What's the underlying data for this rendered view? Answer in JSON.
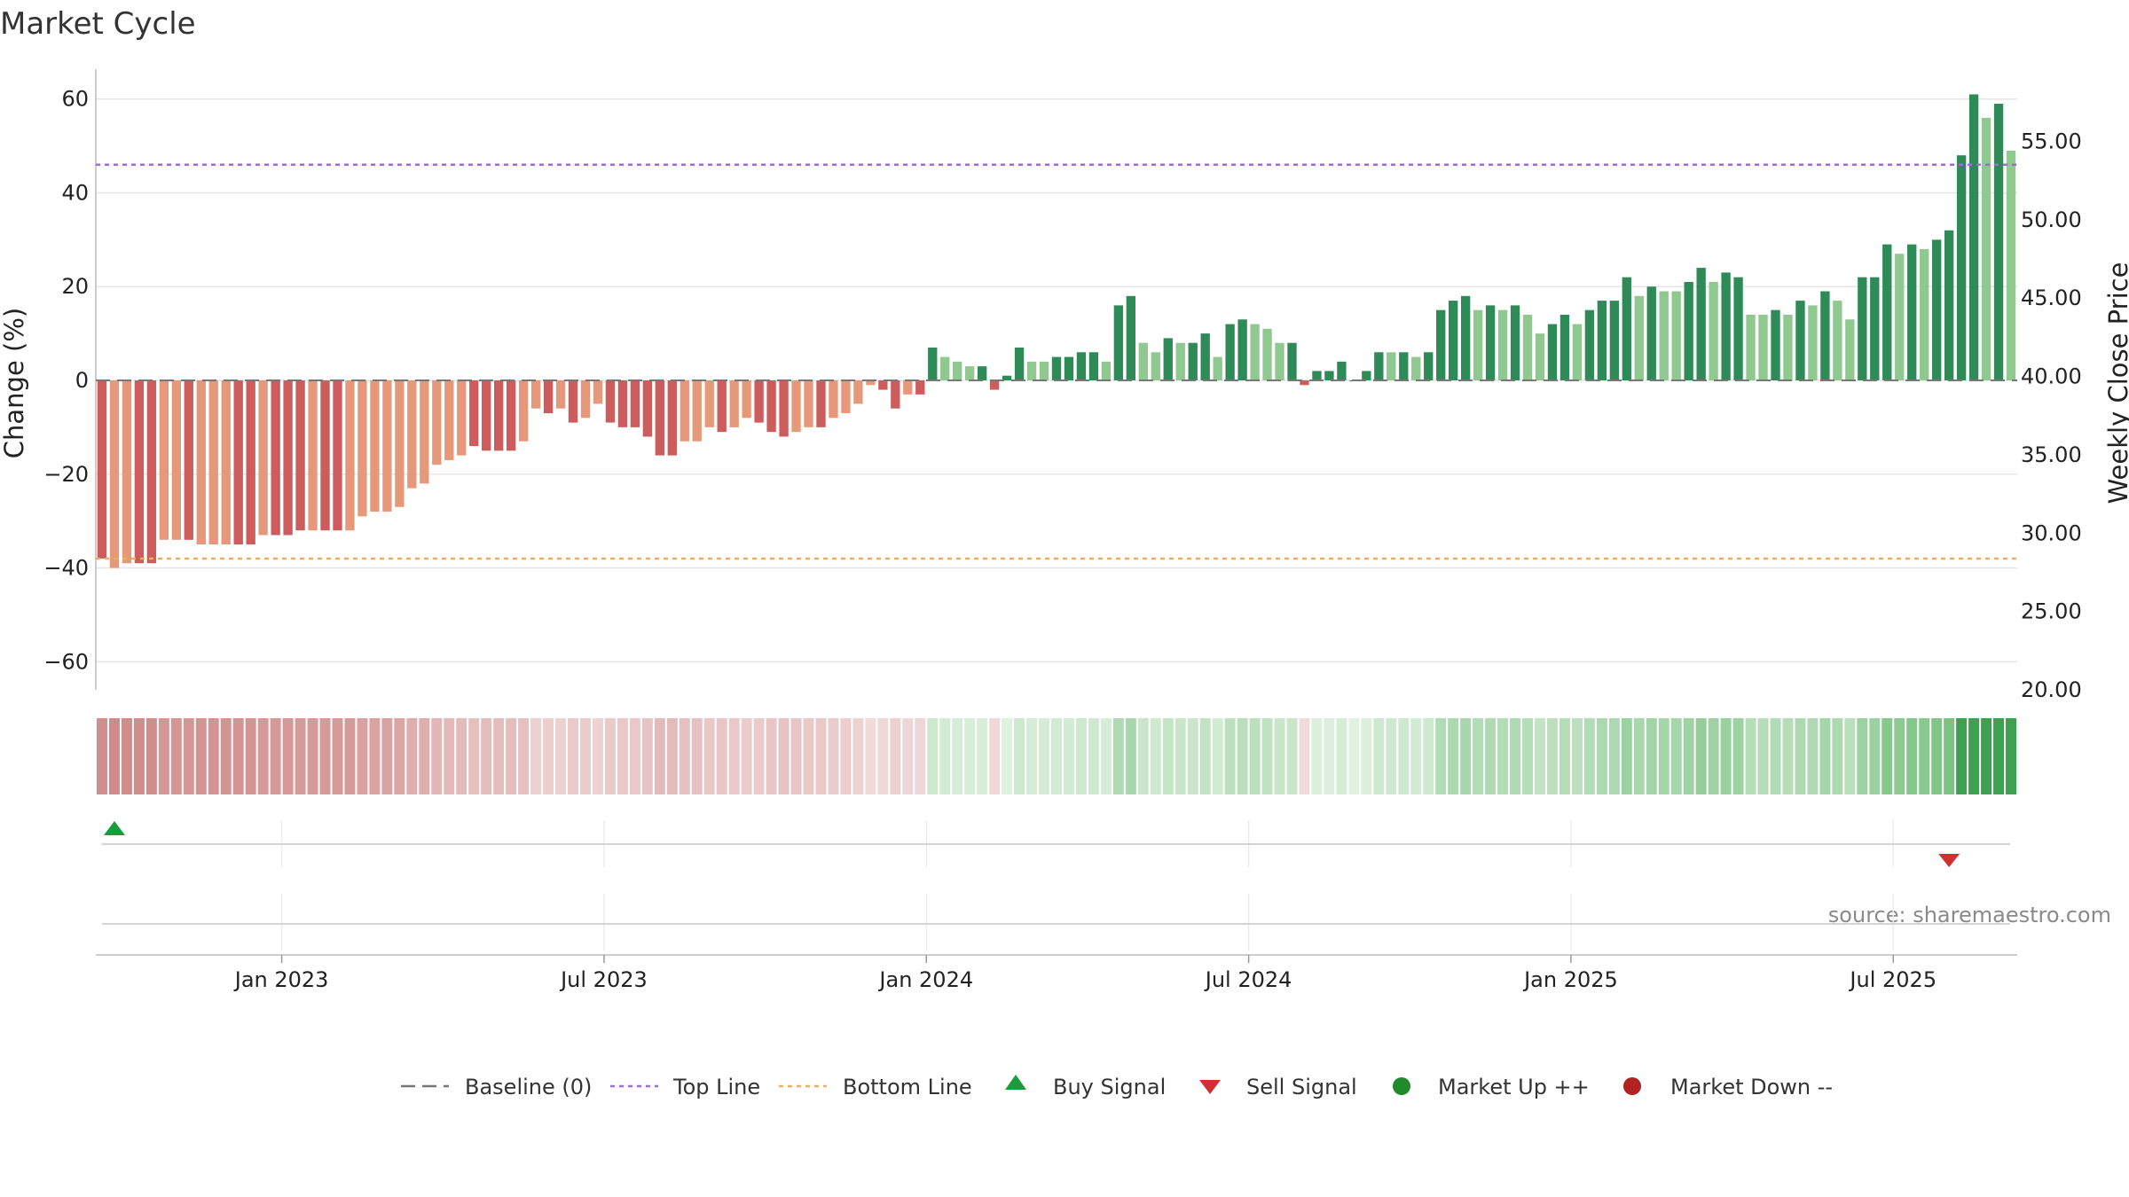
{
  "chart_data": {
    "type": "bar",
    "title": "Market Cycle",
    "ylabel_left": "Change (%)",
    "ylabel_right": "Weekly Close Price",
    "source": "source: sharemaestro.com",
    "y_left": {
      "ticks": [
        60,
        40,
        20,
        0,
        -20,
        -40,
        -60
      ],
      "range": [
        -66,
        66
      ]
    },
    "y_right": {
      "ticks": [
        "55.00",
        "50.00",
        "45.00",
        "40.00",
        "35.00",
        "30.00",
        "25.00",
        "20.00"
      ],
      "range": [
        20,
        59.5
      ]
    },
    "x_ticks": [
      {
        "label": "Jan 2023",
        "index": 15
      },
      {
        "label": "Jul 2023",
        "index": 41
      },
      {
        "label": "Jan 2024",
        "index": 67
      },
      {
        "label": "Jul 2024",
        "index": 93
      },
      {
        "label": "Jan 2025",
        "index": 119
      },
      {
        "label": "Jul 2025",
        "index": 145
      }
    ],
    "start_week": "2022-10-07",
    "period": "weekly",
    "top_line": 46,
    "bottom_line": -38,
    "baseline": 0,
    "colors": {
      "down_strong": "#cd5c5c",
      "down_light": "#e5997a",
      "up_strong": "#2e8b57",
      "up_light": "#8fc98f",
      "top_line": "#9b6fd1",
      "bottom_line": "#e3b06a",
      "baseline": "#777777",
      "buy": "#1a9c3c",
      "sell": "#d03030",
      "market_up": "#218a2b",
      "market_down": "#b22222"
    },
    "values": [
      -38,
      -40,
      -39,
      -39,
      -39,
      -34,
      -34,
      -34,
      -35,
      -35,
      -35,
      -35,
      -35,
      -33,
      -33,
      -33,
      -32,
      -32,
      -32,
      -32,
      -32,
      -29,
      -28,
      -28,
      -27,
      -23,
      -22,
      -18,
      -17,
      -16,
      -14,
      -15,
      -15,
      -15,
      -13,
      -6,
      -7,
      -6,
      -9,
      -8,
      -5,
      -9,
      -10,
      -10,
      -12,
      -16,
      -16,
      -13,
      -13,
      -10,
      -11,
      -10,
      -8,
      -9,
      -11,
      -12,
      -11,
      -10,
      -10,
      -8,
      -7,
      -5,
      -1,
      -2,
      -6,
      -3,
      -3,
      7,
      5,
      4,
      3,
      3,
      -2,
      1,
      7,
      4,
      4,
      5,
      5,
      6,
      6,
      4,
      16,
      18,
      8,
      6,
      9,
      8,
      8,
      10,
      5,
      12,
      13,
      12,
      11,
      8,
      8,
      -1,
      2,
      2,
      4,
      0,
      2,
      6,
      6,
      6,
      5,
      6,
      15,
      17,
      18,
      15,
      16,
      15,
      16,
      14,
      10,
      12,
      14,
      12,
      15,
      17,
      17,
      22,
      18,
      20,
      19,
      19,
      21,
      24,
      21,
      23,
      22,
      14,
      14,
      15,
      14,
      17,
      16,
      19,
      17,
      13,
      22,
      22,
      29,
      27,
      29,
      28,
      30,
      32,
      48,
      61,
      56,
      59,
      49
    ],
    "light": [
      0,
      1,
      1,
      0,
      0,
      1,
      1,
      0,
      1,
      1,
      1,
      0,
      0,
      1,
      0,
      0,
      0,
      1,
      0,
      0,
      1,
      1,
      1,
      1,
      1,
      1,
      1,
      1,
      1,
      1,
      0,
      0,
      0,
      0,
      1,
      1,
      0,
      1,
      0,
      1,
      1,
      0,
      0,
      0,
      0,
      0,
      0,
      1,
      1,
      1,
      0,
      1,
      1,
      0,
      0,
      0,
      1,
      1,
      0,
      1,
      1,
      1,
      1,
      0,
      0,
      1,
      0,
      0,
      1,
      1,
      1,
      0,
      0,
      0,
      0,
      1,
      1,
      0,
      0,
      0,
      0,
      1,
      0,
      0,
      1,
      1,
      0,
      1,
      0,
      0,
      1,
      0,
      0,
      1,
      1,
      1,
      0,
      0,
      0,
      0,
      0,
      0,
      0,
      0,
      1,
      0,
      1,
      0,
      0,
      0,
      0,
      1,
      0,
      1,
      0,
      1,
      1,
      0,
      0,
      1,
      0,
      0,
      0,
      0,
      1,
      0,
      1,
      1,
      0,
      0,
      1,
      0,
      0,
      1,
      1,
      0,
      1,
      0,
      1,
      0,
      1,
      1,
      0,
      0,
      0,
      1,
      0,
      1,
      0,
      0,
      0,
      0,
      1,
      0,
      1
    ],
    "signals": [
      {
        "type": "buy",
        "index": 1
      },
      {
        "type": "sell",
        "index": 149
      }
    ],
    "legend": [
      {
        "key": "baseline",
        "label": "Baseline (0)"
      },
      {
        "key": "top",
        "label": "Top Line"
      },
      {
        "key": "bottom",
        "label": "Bottom Line"
      },
      {
        "key": "buy",
        "label": "Buy Signal"
      },
      {
        "key": "sell",
        "label": "Sell Signal"
      },
      {
        "key": "up",
        "label": "Market Up ++"
      },
      {
        "key": "down",
        "label": "Market Down --"
      }
    ]
  }
}
